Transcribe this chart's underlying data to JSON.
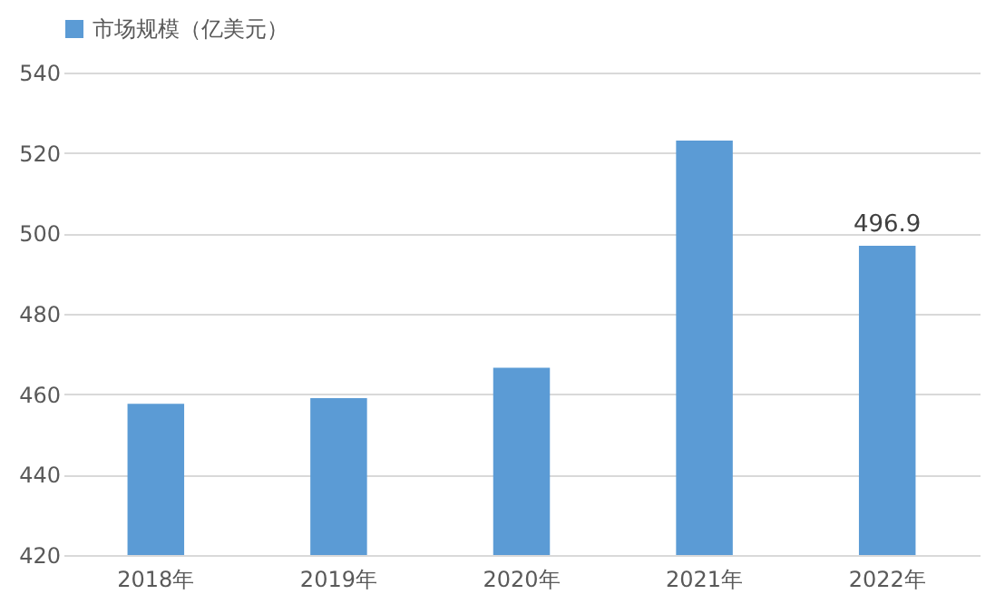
{
  "chart_data": {
    "type": "bar",
    "categories": [
      "2018年",
      "2019年",
      "2020年",
      "2021年",
      "2022年"
    ],
    "series": [
      {
        "name": "市场规模（亿美元）",
        "color": "#5b9bd5",
        "values": [
          457.6,
          459.0,
          466.6,
          523.1,
          496.9
        ],
        "value_labels": [
          null,
          null,
          null,
          null,
          "496.9"
        ]
      }
    ],
    "ylim": [
      420,
      540
    ],
    "yticks": [
      420,
      440,
      460,
      480,
      500,
      520,
      540
    ],
    "grid": "y",
    "legend": "top"
  }
}
